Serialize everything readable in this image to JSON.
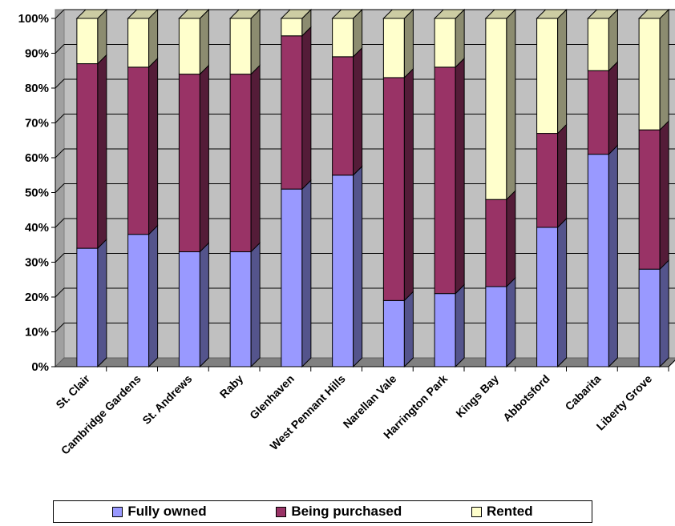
{
  "chart_data": {
    "type": "bar",
    "stacked": true,
    "percent_stacked": true,
    "three_d": true,
    "categories": [
      "St. Clair",
      "Cambridge Gardens",
      "St. Andrews",
      "Raby",
      "Glenhaven",
      "West Pennant Hills",
      "Narellan Vale",
      "Harrington Park",
      "Kings Bay",
      "Abbotsford",
      "Cabarita",
      "Liberty Grove"
    ],
    "series": [
      {
        "name": "Fully owned",
        "color": "#9999ff",
        "values": [
          34,
          38,
          33,
          33,
          51,
          55,
          19,
          21,
          23,
          40,
          61,
          28
        ]
      },
      {
        "name": "Being purchased",
        "color": "#993366",
        "values": [
          53,
          48,
          51,
          51,
          44,
          34,
          64,
          65,
          25,
          27,
          24,
          40
        ]
      },
      {
        "name": "Rented",
        "color": "#ffffcc",
        "values": [
          13,
          14,
          16,
          16,
          5,
          11,
          17,
          14,
          52,
          33,
          15,
          32
        ]
      }
    ],
    "yticks": [
      "0%",
      "10%",
      "20%",
      "30%",
      "40%",
      "50%",
      "60%",
      "70%",
      "80%",
      "90%",
      "100%"
    ],
    "ylim": [
      0,
      100
    ],
    "grid": true,
    "legend_position": "bottom",
    "title": "",
    "xlabel": "",
    "ylabel": ""
  }
}
